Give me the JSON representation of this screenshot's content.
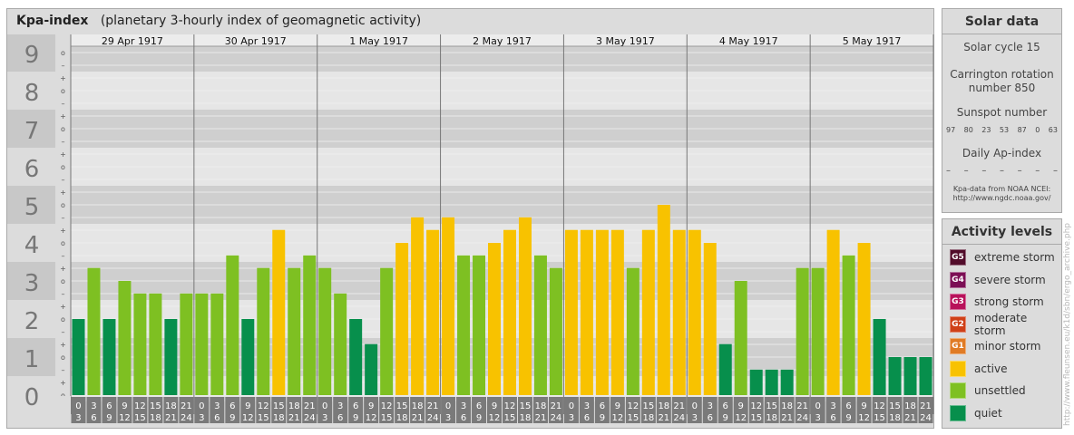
{
  "header": {
    "title": "Kpa-index",
    "subtitle": "(planetary 3-hourly index of geomagnetic activity)"
  },
  "chart_data": {
    "type": "bar",
    "days": [
      "29 Apr 1917",
      "30 Apr 1917",
      "1 May 1917",
      "2 May 1917",
      "3 May 1917",
      "4 May 1917",
      "5 May 1917"
    ],
    "y_tick_labels": [
      "0",
      "1",
      "2",
      "3",
      "4",
      "5",
      "6",
      "7",
      "8",
      "9"
    ],
    "y_minor_labels": [
      "+",
      "o",
      "–"
    ],
    "ylim": [
      0,
      9
    ],
    "interval_top_labels": [
      "0",
      "3",
      "6",
      "9",
      "12",
      "15",
      "18",
      "21"
    ],
    "interval_bottom_labels": [
      "3",
      "6",
      "9",
      "12",
      "15",
      "18",
      "21",
      "24"
    ],
    "values": [
      1.33,
      2.67,
      1.33,
      2.33,
      2.0,
      2.0,
      1.33,
      2.0,
      2.0,
      2.0,
      3.0,
      1.33,
      2.67,
      3.67,
      2.67,
      3.0,
      2.67,
      2.0,
      1.33,
      0.67,
      2.67,
      3.33,
      4.0,
      3.67,
      4.0,
      3.0,
      3.0,
      3.33,
      3.67,
      4.0,
      3.0,
      2.67,
      3.67,
      3.67,
      3.67,
      3.67,
      2.67,
      3.67,
      4.33,
      3.67,
      3.67,
      3.33,
      0.67,
      2.33,
      0.0,
      0.0,
      0.0,
      2.67,
      2.67,
      3.67,
      3.0,
      3.33,
      1.33,
      0.33,
      0.33,
      0.33
    ],
    "colors": {
      "quiet": "#078f4c",
      "unsettled": "#7ec022",
      "active": "#f8c200",
      "minor_storm": "#e07b25",
      "moderate_storm": "#cf4018",
      "strong_storm": "#b8125a",
      "severe_storm": "#7c0f55",
      "extreme_storm": "#520c2a"
    }
  },
  "solar_data": {
    "title": "Solar data",
    "solar_cycle": "Solar cycle 15",
    "carrington_line1": "Carrington rotation",
    "carrington_line2": "number 850",
    "sunspot_label": "Sunspot number",
    "sunspot_values": [
      "97",
      "80",
      "23",
      "53",
      "87",
      "0",
      "63"
    ],
    "ap_label": "Daily Ap-index",
    "ap_values": [
      "–",
      "–",
      "–",
      "–",
      "–",
      "–",
      "–"
    ],
    "source_line1": "Kpa-data from NOAA NCEI:",
    "source_line2": "http://www.ngdc.noaa.gov/"
  },
  "activity_levels": {
    "title": "Activity levels",
    "items": [
      {
        "badge": "G5",
        "label": "extreme storm",
        "color": "#520c2a"
      },
      {
        "badge": "G4",
        "label": "severe storm",
        "color": "#7c0f55"
      },
      {
        "badge": "G3",
        "label": "strong storm",
        "color": "#b8125a"
      },
      {
        "badge": "G2",
        "label": "moderate storm",
        "color": "#cf4018"
      },
      {
        "badge": "G1",
        "label": "minor storm",
        "color": "#e07b25"
      },
      {
        "badge": "",
        "label": "active",
        "color": "#f8c200"
      },
      {
        "badge": "",
        "label": "unsettled",
        "color": "#7ec022"
      },
      {
        "badge": "",
        "label": "quiet",
        "color": "#078f4c"
      }
    ]
  },
  "watermark": "http://www.fleunsen.eu/k1d/sbn/ergo_archive.php"
}
